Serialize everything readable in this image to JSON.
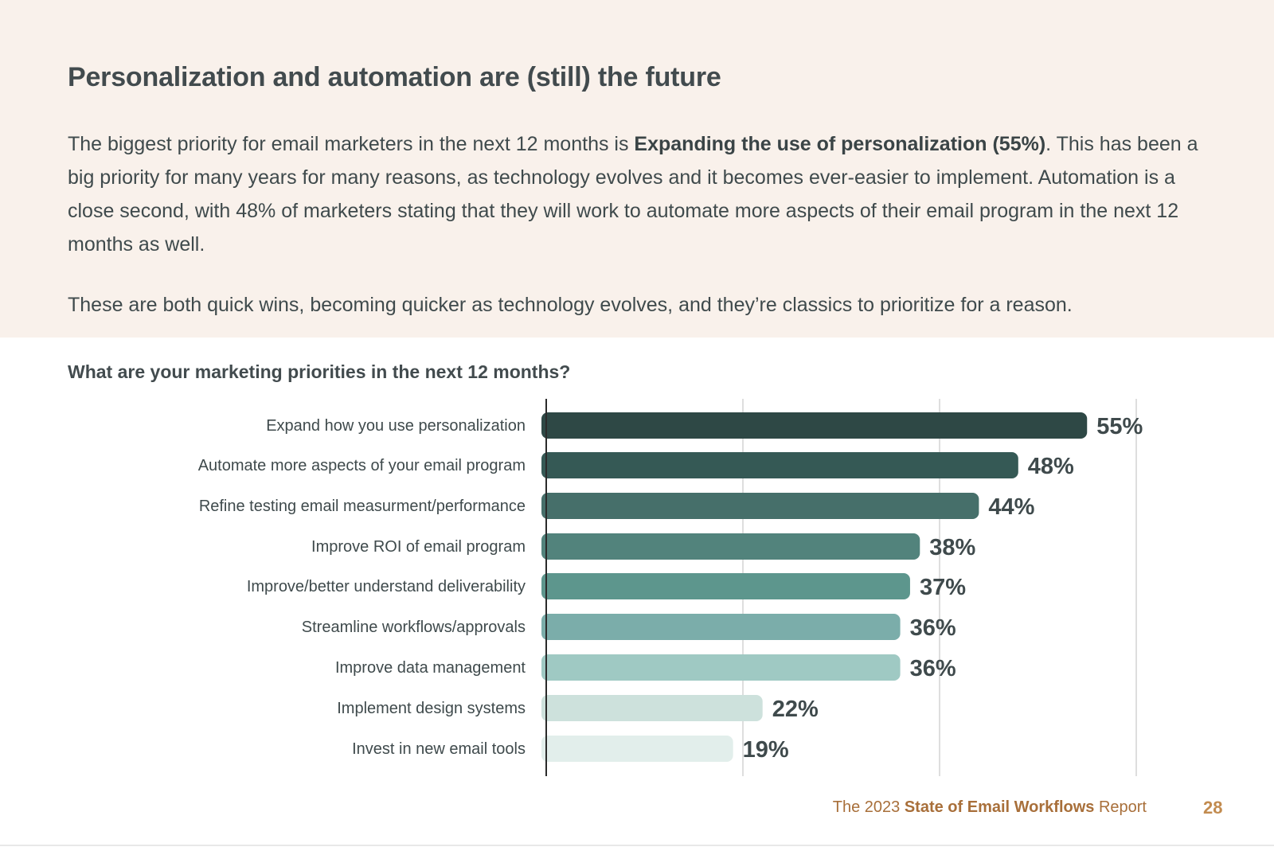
{
  "header": {
    "title": "Personalization and automation are (still) the future",
    "intro_before": "The biggest priority for email marketers in the next 12 months is ",
    "intro_bold": "Expanding the use of personalization (55%)",
    "intro_after": ". This has been a big priority for many years for many reasons, as technology evolves and it becomes ever-easier to implement. Automation is a close second, with 48% of marketers stating that they will work to automate more aspects of their email program in the next 12 months as well.",
    "closing": "These are both quick wins, becoming quicker as technology evolves, and they’re classics to prioritize for a reason."
  },
  "chart_data": {
    "type": "bar",
    "orientation": "horizontal",
    "title": "What are your marketing priorities in the next 12 months?",
    "xlabel": "",
    "ylabel": "",
    "xlim": [
      0,
      60
    ],
    "grid": true,
    "categories": [
      "Expand how you use personalization",
      "Automate more aspects of your email program",
      "Refine testing email measurment/performance",
      "Improve ROI of email program",
      "Improve/better understand deliverability",
      "Streamline workflows/approvals",
      "Improve data management",
      "Implement design systems",
      "Invest in new email tools"
    ],
    "values": [
      55,
      48,
      44,
      38,
      37,
      36,
      36,
      22,
      19
    ],
    "value_labels": [
      "55%",
      "48%",
      "44%",
      "38%",
      "37%",
      "36%",
      "36%",
      "22%",
      "19%"
    ],
    "colors": [
      "#2e4845",
      "#355955",
      "#466f6a",
      "#52837c",
      "#5d968d",
      "#7badaa",
      "#9fc9c3",
      "#cde1dc",
      "#e2eeeb"
    ]
  },
  "footer": {
    "prefix": "The 2023 ",
    "bold": "State of Email Workflows",
    "suffix": " Report",
    "page_number": "28"
  },
  "colors": {
    "header_background": "#f9f1eb",
    "footer_accent": "#a86f3a"
  }
}
